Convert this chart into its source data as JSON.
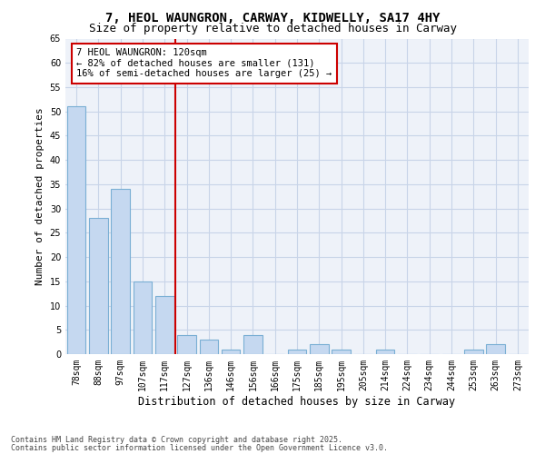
{
  "title_line1": "7, HEOL WAUNGRON, CARWAY, KIDWELLY, SA17 4HY",
  "title_line2": "Size of property relative to detached houses in Carway",
  "xlabel": "Distribution of detached houses by size in Carway",
  "ylabel": "Number of detached properties",
  "categories": [
    "78sqm",
    "88sqm",
    "97sqm",
    "107sqm",
    "117sqm",
    "127sqm",
    "136sqm",
    "146sqm",
    "156sqm",
    "166sqm",
    "175sqm",
    "185sqm",
    "195sqm",
    "205sqm",
    "214sqm",
    "224sqm",
    "234sqm",
    "244sqm",
    "253sqm",
    "263sqm",
    "273sqm"
  ],
  "values": [
    51,
    28,
    34,
    15,
    12,
    4,
    3,
    1,
    4,
    0,
    1,
    2,
    1,
    0,
    1,
    0,
    0,
    0,
    1,
    2,
    0
  ],
  "bar_color": "#c5d8f0",
  "bar_edge_color": "#7aafd4",
  "red_line_x": 4.5,
  "annotation_text": "7 HEOL WAUNGRON: 120sqm\n← 82% of detached houses are smaller (131)\n16% of semi-detached houses are larger (25) →",
  "annotation_box_color": "#ffffff",
  "annotation_box_edge_color": "#cc0000",
  "grid_color": "#c8d4e8",
  "background_color": "#eef2f9",
  "ylim": [
    0,
    65
  ],
  "yticks": [
    0,
    5,
    10,
    15,
    20,
    25,
    30,
    35,
    40,
    45,
    50,
    55,
    60,
    65
  ],
  "footer_line1": "Contains HM Land Registry data © Crown copyright and database right 2025.",
  "footer_line2": "Contains public sector information licensed under the Open Government Licence v3.0.",
  "title_fontsize": 10,
  "subtitle_fontsize": 9,
  "axis_label_fontsize": 8,
  "tick_fontsize": 7,
  "annotation_fontsize": 7.5,
  "footer_fontsize": 6
}
